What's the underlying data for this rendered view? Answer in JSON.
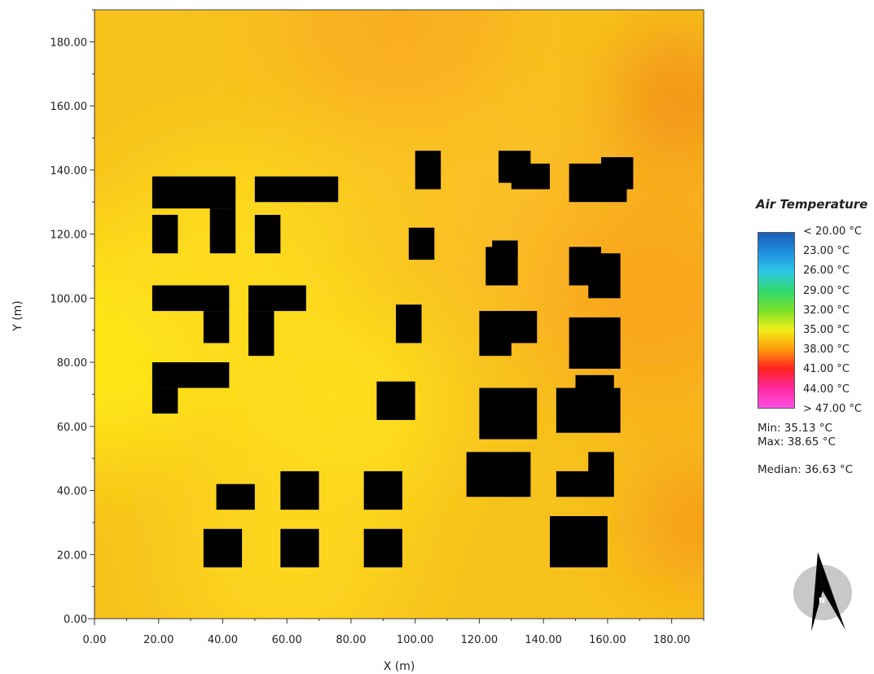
{
  "chart_data": {
    "type": "heatmap",
    "title": "",
    "xlabel": "X (m)",
    "ylabel": "Y (m)",
    "xlim": [
      0,
      190
    ],
    "ylim": [
      0,
      190
    ],
    "x_ticks": [
      "0.00",
      "20.00",
      "40.00",
      "60.00",
      "80.00",
      "100.00",
      "120.00",
      "140.00",
      "160.00",
      "180.00"
    ],
    "x_tick_values": [
      0,
      20,
      40,
      60,
      80,
      100,
      120,
      140,
      160,
      180
    ],
    "y_ticks": [
      "0.00",
      "20.00",
      "40.00",
      "60.00",
      "80.00",
      "100.00",
      "120.00",
      "140.00",
      "160.00",
      "180.00"
    ],
    "y_tick_values": [
      0,
      20,
      40,
      60,
      80,
      100,
      120,
      140,
      160,
      180
    ],
    "colorscale": {
      "title": "Air Temperature",
      "labels": [
        "< 20.00 °C",
        "23.00  °C",
        "26.00  °C",
        "29.00  °C",
        "32.00  °C",
        "35.00  °C",
        "38.00  °C",
        "41.00  °C",
        "44.00  °C",
        "> 47.00 °C"
      ],
      "colors": [
        "#1a5fb4",
        "#1f8fe0",
        "#2ec8e8",
        "#2fd86a",
        "#7be02a",
        "#f2ee18",
        "#ff9a0a",
        "#ff2020",
        "#ff2aa0",
        "#ff50e8"
      ]
    },
    "stats": {
      "min": "Min: 35.13 °C",
      "max": "Max: 38.65 °C",
      "median": "Median: 36.63 °C"
    },
    "field_hotspots": [
      {
        "x": 5,
        "y": 85,
        "temp": 35.2
      },
      {
        "x": 75,
        "y": 65,
        "temp": 35.6
      },
      {
        "x": 40,
        "y": 110,
        "temp": 35.8
      },
      {
        "x": 60,
        "y": 20,
        "temp": 36.0
      },
      {
        "x": 100,
        "y": 150,
        "temp": 36.6
      },
      {
        "x": 140,
        "y": 120,
        "temp": 37.0
      },
      {
        "x": 175,
        "y": 100,
        "temp": 37.6
      },
      {
        "x": 182,
        "y": 162,
        "temp": 38.6
      },
      {
        "x": 188,
        "y": 30,
        "temp": 38.2
      },
      {
        "x": 95,
        "y": 188,
        "temp": 37.4
      }
    ],
    "buildings": [
      {
        "x": [
          18,
          44
        ],
        "y": [
          128,
          138
        ]
      },
      {
        "x": [
          36,
          44
        ],
        "y": [
          114,
          128
        ]
      },
      {
        "x": [
          18,
          26
        ],
        "y": [
          114,
          126
        ]
      },
      {
        "x": [
          50,
          76
        ],
        "y": [
          130,
          138
        ]
      },
      {
        "x": [
          50,
          58
        ],
        "y": [
          114,
          126
        ]
      },
      {
        "x": [
          18,
          42
        ],
        "y": [
          96,
          104
        ]
      },
      {
        "x": [
          34,
          42
        ],
        "y": [
          86,
          96
        ]
      },
      {
        "x": [
          48,
          66
        ],
        "y": [
          96,
          104
        ]
      },
      {
        "x": [
          48,
          56
        ],
        "y": [
          82,
          96
        ]
      },
      {
        "x": [
          18,
          42
        ],
        "y": [
          72,
          80
        ]
      },
      {
        "x": [
          18,
          26
        ],
        "y": [
          64,
          72
        ]
      },
      {
        "x": [
          100,
          108
        ],
        "y": [
          134,
          146
        ]
      },
      {
        "x": [
          98,
          106
        ],
        "y": [
          112,
          122
        ]
      },
      {
        "x": [
          94,
          102
        ],
        "y": [
          86,
          98
        ]
      },
      {
        "x": [
          88,
          100
        ],
        "y": [
          62,
          74
        ]
      },
      {
        "x": [
          126,
          136
        ],
        "y": [
          136,
          146
        ]
      },
      {
        "x": [
          130,
          142
        ],
        "y": [
          134,
          142
        ]
      },
      {
        "x": [
          148,
          166
        ],
        "y": [
          130,
          142
        ]
      },
      {
        "x": [
          158,
          168
        ],
        "y": [
          134,
          144
        ]
      },
      {
        "x": [
          122,
          132
        ],
        "y": [
          104,
          116
        ]
      },
      {
        "x": [
          124,
          132
        ],
        "y": [
          114,
          118
        ]
      },
      {
        "x": [
          148,
          158
        ],
        "y": [
          104,
          116
        ]
      },
      {
        "x": [
          154,
          164
        ],
        "y": [
          100,
          114
        ]
      },
      {
        "x": [
          120,
          130
        ],
        "y": [
          82,
          96
        ]
      },
      {
        "x": [
          128,
          138
        ],
        "y": [
          86,
          96
        ]
      },
      {
        "x": [
          148,
          164
        ],
        "y": [
          78,
          94
        ]
      },
      {
        "x": [
          120,
          138
        ],
        "y": [
          56,
          72
        ]
      },
      {
        "x": [
          144,
          164
        ],
        "y": [
          58,
          72
        ]
      },
      {
        "x": [
          150,
          162
        ],
        "y": [
          70,
          76
        ]
      },
      {
        "x": [
          116,
          136
        ],
        "y": [
          38,
          52
        ]
      },
      {
        "x": [
          144,
          162
        ],
        "y": [
          38,
          46
        ]
      },
      {
        "x": [
          154,
          162
        ],
        "y": [
          44,
          52
        ]
      },
      {
        "x": [
          38,
          50
        ],
        "y": [
          34,
          42
        ]
      },
      {
        "x": [
          58,
          70
        ],
        "y": [
          34,
          46
        ]
      },
      {
        "x": [
          84,
          96
        ],
        "y": [
          34,
          46
        ]
      },
      {
        "x": [
          34,
          46
        ],
        "y": [
          16,
          28
        ]
      },
      {
        "x": [
          58,
          70
        ],
        "y": [
          16,
          28
        ]
      },
      {
        "x": [
          84,
          96
        ],
        "y": [
          16,
          28
        ]
      },
      {
        "x": [
          142,
          160
        ],
        "y": [
          16,
          32
        ]
      }
    ]
  },
  "compass": {
    "label": "N"
  }
}
